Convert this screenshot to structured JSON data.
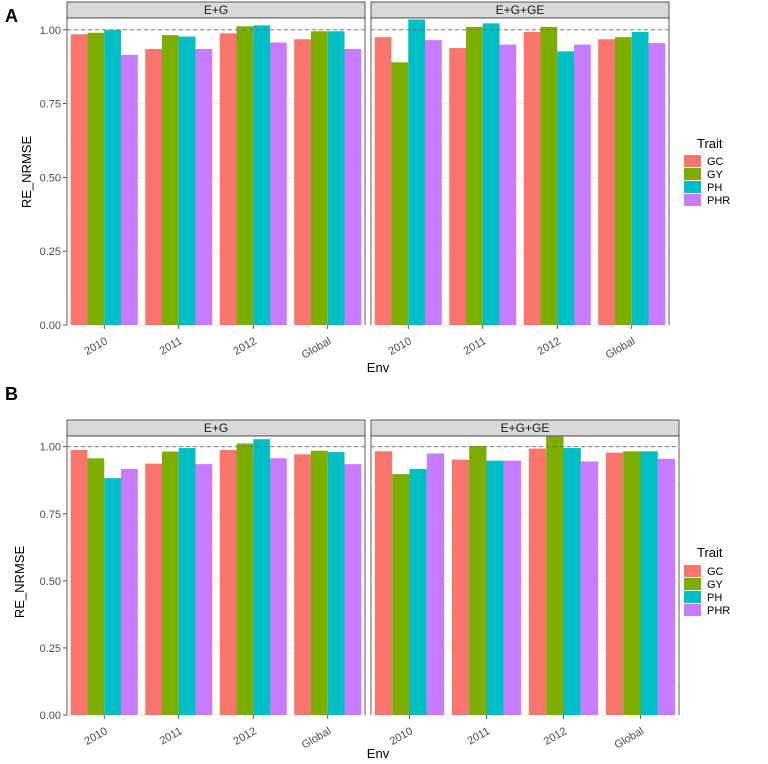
{
  "chart_data": [
    {
      "type": "bar",
      "panel_label": "A",
      "facets": [
        "E+G",
        "E+G+GE"
      ],
      "categories": [
        "2010",
        "2011",
        "2012",
        "Global"
      ],
      "xlabel": "Env",
      "ylabel": "RE_NRMSE",
      "ylim": [
        0,
        1.04
      ],
      "yticks": [
        "0.00",
        "0.25",
        "0.50",
        "0.75",
        "1.00"
      ],
      "reference_line": 1.0,
      "legend_title": "Trait",
      "series": [
        {
          "name": "GC",
          "color": "#F8766D",
          "values": [
            [
              0.985,
              0.935,
              0.988,
              0.968
            ],
            [
              0.975,
              0.938,
              0.993,
              0.968
            ]
          ]
        },
        {
          "name": "GY",
          "color": "#7CAE00",
          "values": [
            [
              0.99,
              0.982,
              1.012,
              0.995
            ],
            [
              0.89,
              1.01,
              1.01,
              0.975
            ]
          ]
        },
        {
          "name": "PH",
          "color": "#00BFC4",
          "values": [
            [
              1.0,
              0.977,
              1.015,
              0.995
            ],
            [
              1.035,
              1.022,
              0.927,
              0.993
            ]
          ]
        },
        {
          "name": "PHR",
          "color": "#C77CFF",
          "values": [
            [
              0.915,
              0.935,
              0.957,
              0.935
            ],
            [
              0.965,
              0.95,
              0.95,
              0.955
            ]
          ]
        }
      ]
    },
    {
      "type": "bar",
      "panel_label": "B",
      "facets": [
        "E+G",
        "E+G+GE"
      ],
      "categories": [
        "2010",
        "2011",
        "2012",
        "Global"
      ],
      "xlabel": "Env",
      "ylabel": "RE_NRMSE",
      "ylim": [
        0,
        1.04
      ],
      "yticks": [
        "0.00",
        "0.25",
        "0.50",
        "0.75",
        "1.00"
      ],
      "reference_line": 1.0,
      "legend_title": "Trait",
      "series": [
        {
          "name": "GC",
          "color": "#F8766D",
          "values": [
            [
              0.988,
              0.937,
              0.988,
              0.972
            ],
            [
              0.983,
              0.952,
              0.993,
              0.978
            ]
          ]
        },
        {
          "name": "GY",
          "color": "#7CAE00",
          "values": [
            [
              0.957,
              0.982,
              1.012,
              0.985
            ],
            [
              0.898,
              1.003,
              1.038,
              0.983
            ]
          ]
        },
        {
          "name": "PH",
          "color": "#00BFC4",
          "values": [
            [
              0.883,
              0.995,
              1.028,
              0.98
            ],
            [
              0.917,
              0.948,
              0.995,
              0.983
            ]
          ]
        },
        {
          "name": "PHR",
          "color": "#C77CFF",
          "values": [
            [
              0.917,
              0.935,
              0.957,
              0.935
            ],
            [
              0.975,
              0.948,
              0.945,
              0.955
            ]
          ]
        }
      ]
    }
  ]
}
